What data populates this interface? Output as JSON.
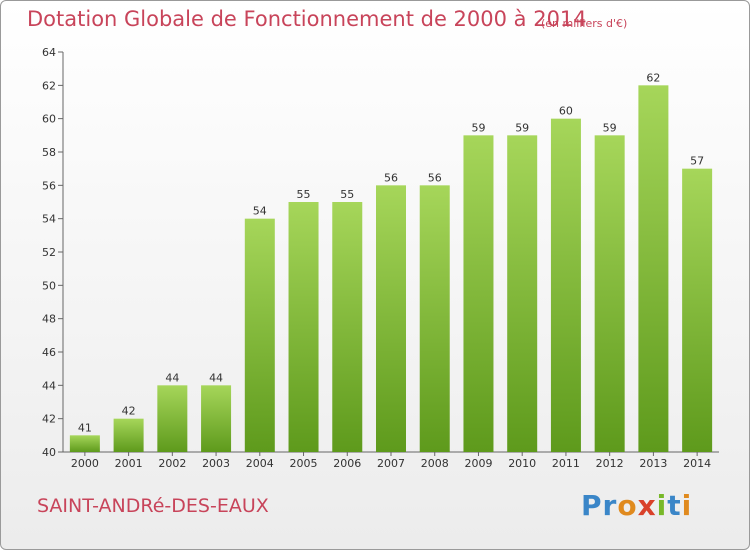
{
  "chart_data": {
    "type": "bar",
    "title": "Dotation Globale de Fonctionnement de 2000 à 2014",
    "subtitle": "(en milliers d'€)",
    "categories": [
      "2000",
      "2001",
      "2002",
      "2003",
      "2004",
      "2005",
      "2006",
      "2007",
      "2008",
      "2009",
      "2010",
      "2011",
      "2012",
      "2013",
      "2014"
    ],
    "values": [
      41,
      42,
      44,
      44,
      54,
      55,
      55,
      56,
      56,
      59,
      59,
      60,
      59,
      62,
      57
    ],
    "ylim": [
      40,
      64
    ],
    "yticks": [
      40,
      42,
      44,
      46,
      48,
      50,
      52,
      54,
      56,
      58,
      60,
      62,
      64
    ],
    "grid": false,
    "colors": {
      "bar_light": "#a6d65a",
      "bar_dark": "#5e9a1c",
      "title": "#c8445a"
    }
  },
  "footer": {
    "commune": "SAINT-ANDRé-DES-EAUX",
    "logo_letters": [
      {
        "ch": "P",
        "color": "#3a86c8"
      },
      {
        "ch": "r",
        "color": "#3a86c8"
      },
      {
        "ch": "o",
        "color": "#e08a1e"
      },
      {
        "ch": "x",
        "color": "#d9412a"
      },
      {
        "ch": "i",
        "color": "#78b828"
      },
      {
        "ch": "t",
        "color": "#3a86c8"
      },
      {
        "ch": "i",
        "color": "#e08a1e"
      }
    ]
  }
}
